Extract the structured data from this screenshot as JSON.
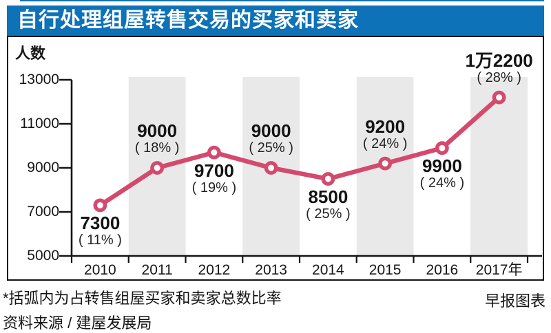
{
  "header": {
    "title": "自行处理组屋转售交易的买家和卖家",
    "bar_color": "#0e72b8",
    "text_color": "#ffffff"
  },
  "chart_data": {
    "type": "line",
    "title": "自行处理组屋转售交易的买家和卖家",
    "ylabel": "人数",
    "xlabel": "",
    "ylim": [
      5000,
      13000
    ],
    "yticks": [
      13000,
      11000,
      9000,
      7000,
      5000
    ],
    "grid": "off",
    "legend": "none",
    "line_color": "#d44a6e",
    "marker_fill": "#ffffff",
    "band_color": "#e9e9e9",
    "categories": [
      "2010",
      "2011",
      "2012",
      "2013",
      "2014",
      "2015",
      "2016",
      "2017年"
    ],
    "points": [
      {
        "year": "2010",
        "value": 7300,
        "value_label": "7300",
        "pct_label": "( 11% )",
        "label_position": "below",
        "band": false
      },
      {
        "year": "2011",
        "value": 9000,
        "value_label": "9000",
        "pct_label": "( 18% )",
        "label_position": "above",
        "band": true
      },
      {
        "year": "2012",
        "value": 9700,
        "value_label": "9700",
        "pct_label": "( 19% )",
        "label_position": "below",
        "band": false
      },
      {
        "year": "2013",
        "value": 9000,
        "value_label": "9000",
        "pct_label": "( 25% )",
        "label_position": "above",
        "band": true
      },
      {
        "year": "2014",
        "value": 8500,
        "value_label": "8500",
        "pct_label": "( 25% )",
        "label_position": "below",
        "band": false
      },
      {
        "year": "2015",
        "value": 9200,
        "value_label": "9200",
        "pct_label": "( 24% )",
        "label_position": "above",
        "band": true
      },
      {
        "year": "2016",
        "value": 9900,
        "value_label": "9900",
        "pct_label": "( 24% )",
        "label_position": "below",
        "band": false
      },
      {
        "year": "2017年",
        "value": 12200,
        "value_label": "1万2200",
        "pct_label": "( 28% )",
        "label_position": "above",
        "band": true
      }
    ]
  },
  "footer": {
    "note": "*括弧内为占转售组屋买家和卖家总数比率",
    "credit": "早报图表",
    "source": "资料来源 / 建屋发展局"
  }
}
